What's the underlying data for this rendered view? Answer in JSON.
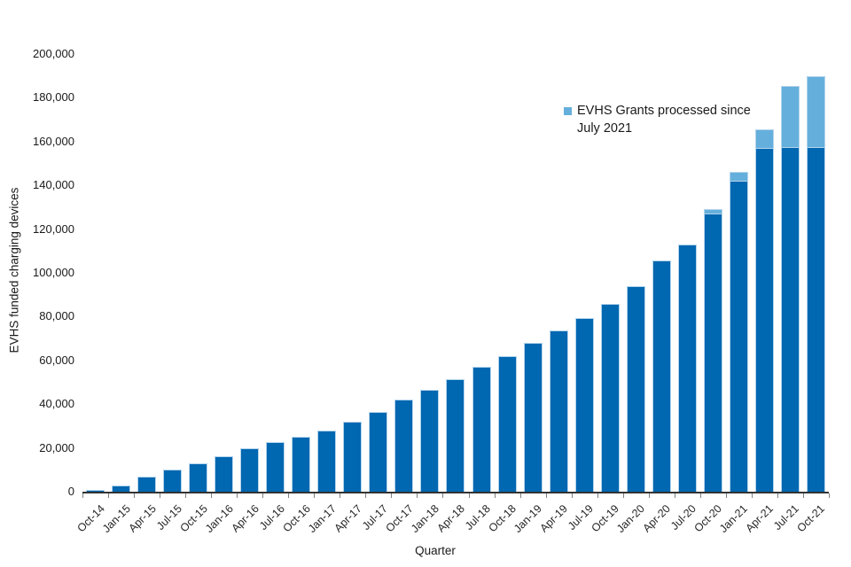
{
  "colors": {
    "bar_dark": "#0067b1",
    "bar_light": "#65afdc",
    "bar_border": "#b3d4ec",
    "axis_line": "#333333",
    "tick_mark": "#808080",
    "text": "#1a1a1a"
  },
  "chart_data": {
    "type": "bar",
    "stacked": true,
    "title": "",
    "xlabel": "Quarter",
    "ylabel": "EVHS funded charging devices",
    "ylim": [
      0,
      200000
    ],
    "ytick_step": 20000,
    "ytick_labels": [
      "0",
      "20,000",
      "40,000",
      "60,000",
      "80,000",
      "100,000",
      "120,000",
      "140,000",
      "160,000",
      "180,000",
      "200,000"
    ],
    "grid": false,
    "categories": [
      "Oct-14",
      "Jan-15",
      "Apr-15",
      "Jul-15",
      "Oct-15",
      "Jan-16",
      "Apr-16",
      "Jul-16",
      "Oct-16",
      "Jan-17",
      "Apr-17",
      "Jul-17",
      "Oct-17",
      "Jan-18",
      "Apr-18",
      "Jul-18",
      "Oct-18",
      "Jan-19",
      "Apr-19",
      "Jul-19",
      "Oct-19",
      "Jan-20",
      "Apr-20",
      "Jul-20",
      "Oct-20",
      "Jan-21",
      "Apr-21",
      "Jul-21",
      "Oct-21"
    ],
    "series": [
      {
        "name": "EVHS funded charging devices",
        "color": "#0067b1",
        "values": [
          800,
          3000,
          7000,
          10000,
          13000,
          16000,
          20000,
          22500,
          25000,
          28000,
          32000,
          36500,
          42000,
          46500,
          51500,
          57000,
          62000,
          68000,
          73500,
          79500,
          86000,
          94000,
          105500,
          113000,
          127000,
          142000,
          157000,
          157500,
          157500
        ]
      },
      {
        "name": "EVHS Grants processed since July 2021",
        "color": "#65afdc",
        "values": [
          0,
          0,
          0,
          0,
          0,
          0,
          0,
          0,
          0,
          0,
          0,
          0,
          0,
          0,
          0,
          0,
          0,
          0,
          0,
          0,
          0,
          0,
          0,
          0,
          2000,
          4000,
          8500,
          28000,
          32500
        ]
      }
    ],
    "legend": {
      "label": "EVHS Grants processed since July 2021",
      "position": "inside-top-right"
    }
  }
}
